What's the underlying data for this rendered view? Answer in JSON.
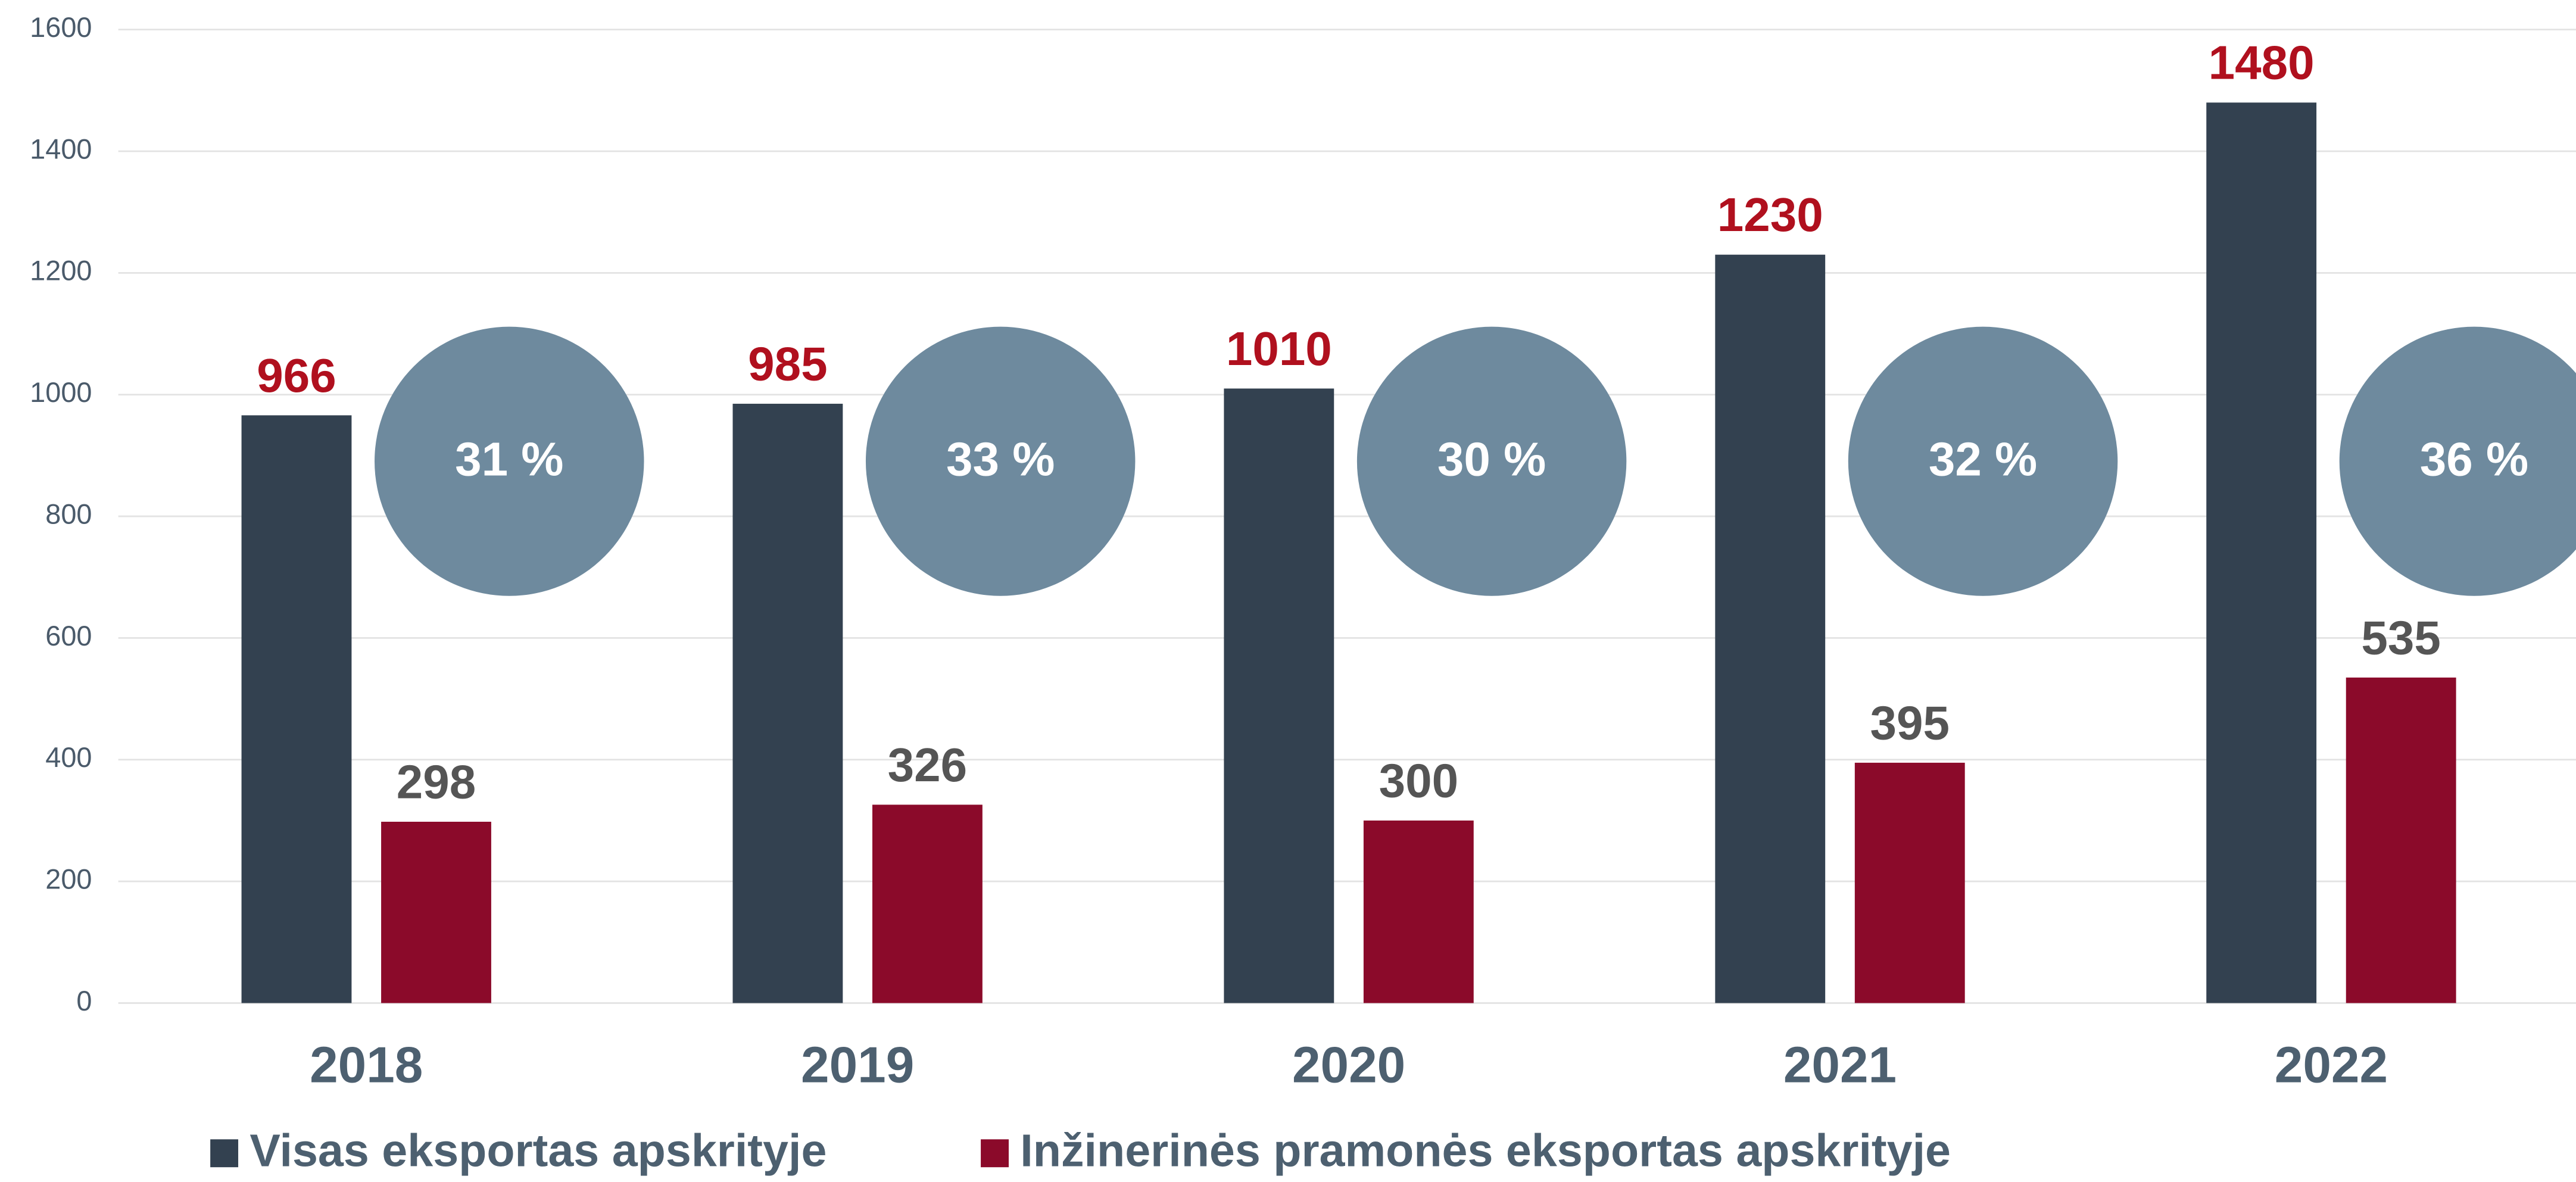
{
  "chart_data": {
    "type": "bar",
    "categories": [
      "2018",
      "2019",
      "2020",
      "2021",
      "2022"
    ],
    "series": [
      {
        "name": "Visas eksportas apskrityje",
        "color": "#334150",
        "label_color": "#b0101e",
        "values": [
          966,
          985,
          1010,
          1230,
          1480
        ]
      },
      {
        "name": "Inžinerinės pramonės eksportas apskrityje",
        "color": "#8b0a2a",
        "label_color": "#555555",
        "values": [
          298,
          326,
          300,
          395,
          535
        ]
      }
    ],
    "shares": {
      "color": "#6e8a9e",
      "values": [
        31,
        33,
        30,
        32,
        36
      ],
      "value_labels": [
        "31 %",
        "33 %",
        "30 %",
        "32 %",
        "36 %"
      ]
    },
    "ylim": [
      0,
      1600
    ],
    "yticks": [
      0,
      200,
      400,
      600,
      800,
      1000,
      1200,
      1400,
      1600
    ],
    "grid": true
  }
}
